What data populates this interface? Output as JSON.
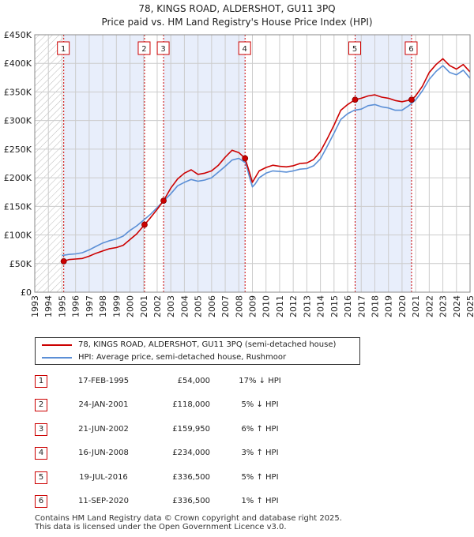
{
  "title_line1": "78, KINGS ROAD, ALDERSHOT, GU11 3PQ",
  "title_line2": "Price paid vs. HM Land Registry's House Price Index (HPI)",
  "colors": {
    "property_line": "#cc0000",
    "hpi_line": "#5b8fd6",
    "pre_period_hatch": "#bbbbbb",
    "sale_shading": "#e8eefb",
    "marker_border": "#cc0000",
    "background": "#ffffff",
    "grid": "#cccccc"
  },
  "chart_data": {
    "type": "line",
    "xlim": [
      1993,
      2025
    ],
    "ylim": [
      0,
      450000
    ],
    "x_ticks": [
      "1993",
      "1994",
      "1995",
      "1996",
      "1997",
      "1998",
      "1999",
      "2000",
      "2001",
      "2002",
      "2003",
      "2004",
      "2005",
      "2006",
      "2007",
      "2008",
      "2009",
      "2010",
      "2011",
      "2012",
      "2013",
      "2014",
      "2015",
      "2016",
      "2017",
      "2018",
      "2019",
      "2020",
      "2021",
      "2022",
      "2023",
      "2024",
      "2025"
    ],
    "y_ticks": [
      {
        "value": 0,
        "label": "£0"
      },
      {
        "value": 50000,
        "label": "£50K"
      },
      {
        "value": 100000,
        "label": "£100K"
      },
      {
        "value": 150000,
        "label": "£150K"
      },
      {
        "value": 200000,
        "label": "£200K"
      },
      {
        "value": 250000,
        "label": "£250K"
      },
      {
        "value": 300000,
        "label": "£300K"
      },
      {
        "value": 350000,
        "label": "£350K"
      },
      {
        "value": 400000,
        "label": "£400K"
      },
      {
        "value": 450000,
        "label": "£450K"
      }
    ],
    "grid": true,
    "legend_position": "below chart",
    "series": [
      {
        "name": "78, KINGS ROAD, ALDERSHOT, GU11 3PQ (semi-detached house)",
        "x": [
          1995.13,
          1995.5,
          1996.0,
          1996.5,
          1997.0,
          1997.5,
          1998.0,
          1998.5,
          1999.0,
          1999.5,
          2000.0,
          2000.5,
          2001.07,
          2001.5,
          2002.0,
          2002.47,
          2003.0,
          2003.5,
          2004.0,
          2004.5,
          2005.0,
          2005.5,
          2006.0,
          2006.5,
          2007.0,
          2007.5,
          2008.0,
          2008.46,
          2008.8,
          2009.0,
          2009.2,
          2009.5,
          2010.0,
          2010.5,
          2011.0,
          2011.5,
          2012.0,
          2012.5,
          2013.0,
          2013.5,
          2014.0,
          2014.5,
          2015.0,
          2015.5,
          2016.0,
          2016.55,
          2017.0,
          2017.5,
          2018.0,
          2018.5,
          2019.0,
          2019.5,
          2020.0,
          2020.7,
          2021.0,
          2021.5,
          2022.0,
          2022.5,
          2023.0,
          2023.5,
          2024.0,
          2024.5,
          2025.0
        ],
        "values": [
          54000,
          57000,
          58000,
          59000,
          63000,
          68000,
          72000,
          76000,
          78000,
          82000,
          92000,
          102000,
          118000,
          130000,
          145000,
          159950,
          182000,
          198000,
          208000,
          214000,
          206000,
          208000,
          212000,
          222000,
          236000,
          248000,
          244000,
          234000,
          208000,
          192000,
          200000,
          212000,
          218000,
          222000,
          220000,
          219000,
          221000,
          225000,
          226000,
          232000,
          246000,
          268000,
          292000,
          318000,
          328000,
          336500,
          339000,
          343000,
          345000,
          341000,
          339000,
          335000,
          333000,
          336500,
          343000,
          360000,
          384000,
          398000,
          408000,
          396000,
          390000,
          398000,
          385000
        ]
      },
      {
        "name": "HPI: Average price, semi-detached house, Rushmoor",
        "x": [
          1995.0,
          1995.5,
          1996.0,
          1996.5,
          1997.0,
          1997.5,
          1998.0,
          1998.5,
          1999.0,
          1999.5,
          2000.0,
          2000.5,
          2001.0,
          2001.5,
          2002.0,
          2002.5,
          2003.0,
          2003.5,
          2004.0,
          2004.5,
          2005.0,
          2005.5,
          2006.0,
          2006.5,
          2007.0,
          2007.5,
          2008.0,
          2008.5,
          2008.8,
          2009.0,
          2009.2,
          2009.5,
          2010.0,
          2010.5,
          2011.0,
          2011.5,
          2012.0,
          2012.5,
          2013.0,
          2013.5,
          2014.0,
          2014.5,
          2015.0,
          2015.5,
          2016.0,
          2016.5,
          2017.0,
          2017.5,
          2018.0,
          2018.5,
          2019.0,
          2019.5,
          2020.0,
          2020.5,
          2021.0,
          2021.5,
          2022.0,
          2022.5,
          2023.0,
          2023.5,
          2024.0,
          2024.5,
          2025.0
        ],
        "values": [
          64000,
          66000,
          67000,
          69000,
          74000,
          80000,
          86000,
          90000,
          93000,
          98000,
          108000,
          116000,
          126000,
          136000,
          148000,
          160000,
          172000,
          186000,
          192000,
          197000,
          194000,
          196000,
          200000,
          210000,
          220000,
          231000,
          234000,
          226000,
          200000,
          184000,
          189000,
          200000,
          208000,
          212000,
          211000,
          210000,
          212000,
          215000,
          216000,
          221000,
          233000,
          255000,
          278000,
          302000,
          312000,
          318000,
          320000,
          326000,
          328000,
          324000,
          322000,
          318000,
          318000,
          326000,
          336000,
          352000,
          372000,
          386000,
          396000,
          384000,
          380000,
          388000,
          374000
        ]
      }
    ],
    "sales": [
      {
        "num": "1",
        "x": 1995.13,
        "value": 54000
      },
      {
        "num": "2",
        "x": 2001.07,
        "value": 118000
      },
      {
        "num": "3",
        "x": 2002.47,
        "value": 159950
      },
      {
        "num": "4",
        "x": 2008.46,
        "value": 234000
      },
      {
        "num": "5",
        "x": 2016.55,
        "value": 336500
      },
      {
        "num": "6",
        "x": 2020.7,
        "value": 336500
      }
    ]
  },
  "legend": {
    "property_label": "78, KINGS ROAD, ALDERSHOT, GU11 3PQ (semi-detached house)",
    "hpi_label": "HPI: Average price, semi-detached house, Rushmoor"
  },
  "sales_table": [
    {
      "num": "1",
      "date": "17-FEB-1995",
      "price": "£54,000",
      "hpi": "17% ↓ HPI"
    },
    {
      "num": "2",
      "date": "24-JAN-2001",
      "price": "£118,000",
      "hpi": "5% ↓ HPI"
    },
    {
      "num": "3",
      "date": "21-JUN-2002",
      "price": "£159,950",
      "hpi": "6% ↑ HPI"
    },
    {
      "num": "4",
      "date": "16-JUN-2008",
      "price": "£234,000",
      "hpi": "3% ↑ HPI"
    },
    {
      "num": "5",
      "date": "19-JUL-2016",
      "price": "£336,500",
      "hpi": "5% ↑ HPI"
    },
    {
      "num": "6",
      "date": "11-SEP-2020",
      "price": "£336,500",
      "hpi": "1% ↑ HPI"
    }
  ],
  "footer": {
    "line1": "Contains HM Land Registry data © Crown copyright and database right 2025.",
    "line2": "This data is licensed under the Open Government Licence v3.0."
  }
}
